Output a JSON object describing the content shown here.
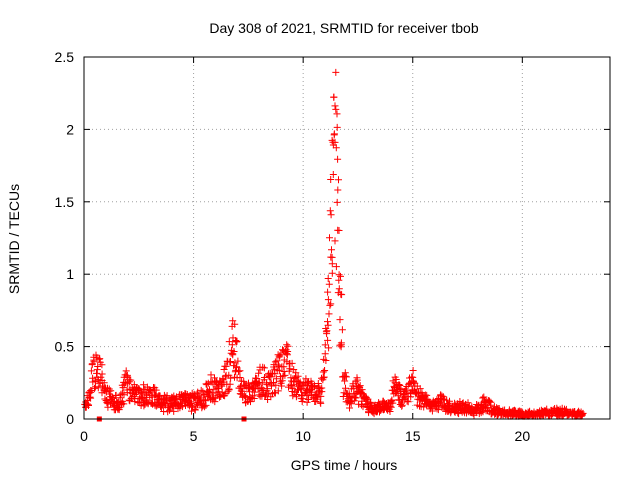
{
  "chart_data": {
    "type": "scatter",
    "title": "Day 308 of 2021, SRMTID for receiver tbob",
    "xlabel": "GPS time / hours",
    "ylabel": "SRMTID / TECUs",
    "xlim": [
      0,
      24
    ],
    "ylim": [
      0,
      2.5
    ],
    "x_ticks": [
      0,
      5,
      10,
      15,
      20
    ],
    "x_tick_labels": [
      "0",
      "5",
      "10",
      "15",
      "20"
    ],
    "y_ticks": [
      0,
      0.5,
      1,
      1.5,
      2,
      2.5
    ],
    "y_tick_labels": [
      "0",
      "0.5",
      "1",
      "1.5",
      "2",
      "2.5"
    ],
    "grid": true,
    "marker": "+",
    "color": "#ff0000",
    "profile": [
      [
        0.0,
        0.08
      ],
      [
        0.2,
        0.15
      ],
      [
        0.4,
        0.33
      ],
      [
        0.6,
        0.37
      ],
      [
        0.8,
        0.3
      ],
      [
        1.0,
        0.18
      ],
      [
        1.3,
        0.14
      ],
      [
        1.6,
        0.1
      ],
      [
        1.9,
        0.27
      ],
      [
        2.2,
        0.2
      ],
      [
        2.6,
        0.17
      ],
      [
        3.0,
        0.19
      ],
      [
        3.5,
        0.12
      ],
      [
        4.0,
        0.11
      ],
      [
        4.5,
        0.14
      ],
      [
        5.0,
        0.13
      ],
      [
        5.5,
        0.17
      ],
      [
        5.8,
        0.24
      ],
      [
        6.2,
        0.2
      ],
      [
        6.5,
        0.3
      ],
      [
        6.75,
        0.5
      ],
      [
        6.9,
        0.58
      ],
      [
        7.1,
        0.25
      ],
      [
        7.4,
        0.19
      ],
      [
        7.8,
        0.22
      ],
      [
        8.1,
        0.3
      ],
      [
        8.4,
        0.24
      ],
      [
        8.8,
        0.32
      ],
      [
        9.2,
        0.42
      ],
      [
        9.5,
        0.3
      ],
      [
        9.9,
        0.2
      ],
      [
        10.3,
        0.21
      ],
      [
        10.8,
        0.18
      ],
      [
        11.0,
        0.42
      ],
      [
        11.15,
        0.8
      ],
      [
        11.3,
        1.6
      ],
      [
        11.42,
        2.15
      ],
      [
        11.55,
        1.7
      ],
      [
        11.7,
        0.9
      ],
      [
        11.85,
        0.3
      ],
      [
        12.1,
        0.15
      ],
      [
        12.4,
        0.22
      ],
      [
        12.7,
        0.15
      ],
      [
        13.0,
        0.09
      ],
      [
        13.5,
        0.08
      ],
      [
        14.0,
        0.1
      ],
      [
        14.2,
        0.3
      ],
      [
        14.5,
        0.12
      ],
      [
        15.0,
        0.25
      ],
      [
        15.3,
        0.17
      ],
      [
        15.8,
        0.11
      ],
      [
        16.3,
        0.12
      ],
      [
        16.8,
        0.08
      ],
      [
        17.3,
        0.1
      ],
      [
        17.8,
        0.06
      ],
      [
        18.3,
        0.12
      ],
      [
        18.8,
        0.05
      ],
      [
        19.5,
        0.04
      ],
      [
        20.5,
        0.03
      ],
      [
        21.5,
        0.05
      ],
      [
        22.3,
        0.04
      ],
      [
        22.8,
        0.03
      ]
    ],
    "x_end": 22.8,
    "point_step": 0.05,
    "square_markers": [
      {
        "x": 0.7,
        "y": 0
      },
      {
        "x": 7.3,
        "y": 0
      }
    ]
  }
}
